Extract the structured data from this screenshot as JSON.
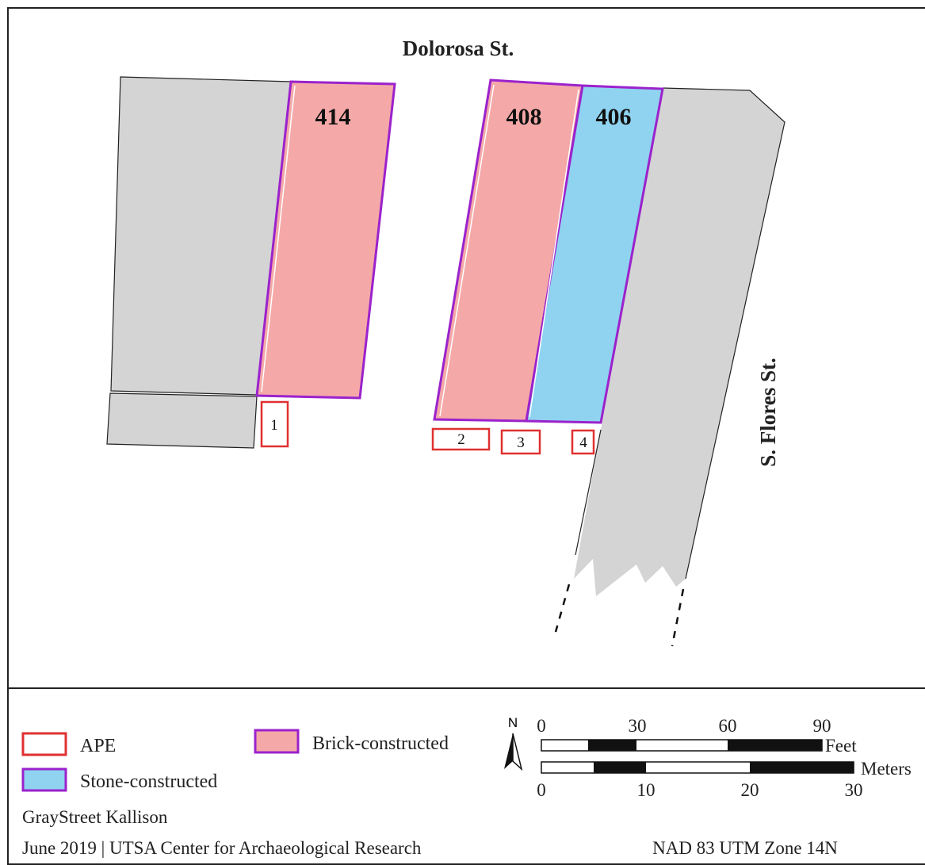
{
  "map": {
    "streets": {
      "north": "Dolorosa St.",
      "east": "S. Flores St."
    },
    "buildings": [
      {
        "number": "414",
        "type": "Brick-constructed"
      },
      {
        "number": "408",
        "type": "Brick-constructed"
      },
      {
        "number": "406",
        "type": "Stone-constructed"
      }
    ],
    "ape_areas": [
      "1",
      "2",
      "3",
      "4"
    ]
  },
  "legend": {
    "items": [
      {
        "label": "APE",
        "fill": "#ffffff",
        "stroke": "#e03030"
      },
      {
        "label": "Brick-constructed",
        "fill": "#f4a9a8",
        "stroke": "#9b22cc"
      },
      {
        "label": "Stone-constructed",
        "fill": "#8fd3f0",
        "stroke": "#9b22cc"
      }
    ]
  },
  "north_arrow": {
    "label": "N"
  },
  "scale_bar": {
    "feet_ticks": [
      "0",
      "30",
      "60",
      "90"
    ],
    "feet_unit": "Feet",
    "meters_ticks": [
      "0",
      "10",
      "20",
      "30"
    ],
    "meters_unit": "Meters"
  },
  "credits": {
    "project": "GrayStreet Kallison",
    "date_org": "June 2019 | UTSA Center for Archaeological Research",
    "projection": "NAD 83 UTM Zone 14N"
  },
  "colors": {
    "gray_parcel": "#d4d4d4",
    "brick": "#f4a9a8",
    "stone": "#8fd3f0",
    "construction_outline": "#9b22cc",
    "ape_outline": "#e03030"
  }
}
